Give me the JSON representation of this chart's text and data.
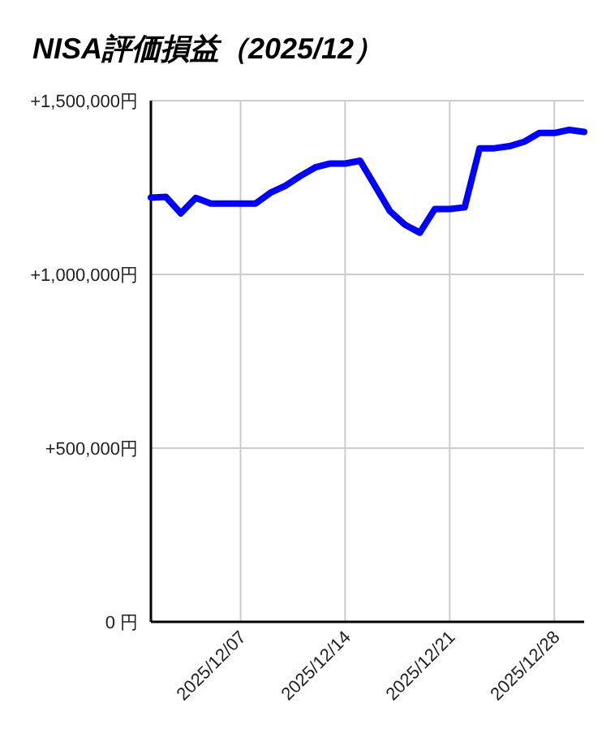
{
  "chart_data": {
    "type": "line",
    "title": "NISA評価損益（2025/12）",
    "x": [
      "2025-12-01",
      "2025-12-02",
      "2025-12-03",
      "2025-12-04",
      "2025-12-05",
      "2025-12-06",
      "2025-12-07",
      "2025-12-08",
      "2025-12-09",
      "2025-12-10",
      "2025-12-11",
      "2025-12-12",
      "2025-12-13",
      "2025-12-14",
      "2025-12-15",
      "2025-12-16",
      "2025-12-17",
      "2025-12-18",
      "2025-12-19",
      "2025-12-20",
      "2025-12-21",
      "2025-12-22",
      "2025-12-23",
      "2025-12-24",
      "2025-12-25",
      "2025-12-26",
      "2025-12-27",
      "2025-12-28",
      "2025-12-29",
      "2025-12-30"
    ],
    "series": [
      {
        "color": "#0000ff",
        "values": [
          1221000,
          1223000,
          1176000,
          1220000,
          1204000,
          1204000,
          1204000,
          1204000,
          1235000,
          1255000,
          1283000,
          1308000,
          1319000,
          1319000,
          1327000,
          1255000,
          1182000,
          1143000,
          1120000,
          1188000,
          1188000,
          1193000,
          1363000,
          1363000,
          1369000,
          1382000,
          1407000,
          1407000,
          1416000,
          1410000
        ]
      }
    ],
    "xlim": [
      "2025-12-01",
      "2025-12-30"
    ],
    "xticks": [
      {
        "value": "2025-12-07",
        "label": "2025/12/07"
      },
      {
        "value": "2025-12-14",
        "label": "2025/12/14"
      },
      {
        "value": "2025-12-21",
        "label": "2025/12/21"
      },
      {
        "value": "2025-12-28",
        "label": "2025/12/28"
      }
    ],
    "ylim": [
      0,
      1500000
    ],
    "yticks": [
      {
        "value": 0,
        "label": "0 円"
      },
      {
        "value": 500000,
        "label": "+500,000円"
      },
      {
        "value": 1000000,
        "label": "+1,000,000円"
      },
      {
        "value": 1500000,
        "label": "+1,500,000円"
      }
    ],
    "grid": true,
    "marker": "none",
    "line_style": "solid"
  }
}
